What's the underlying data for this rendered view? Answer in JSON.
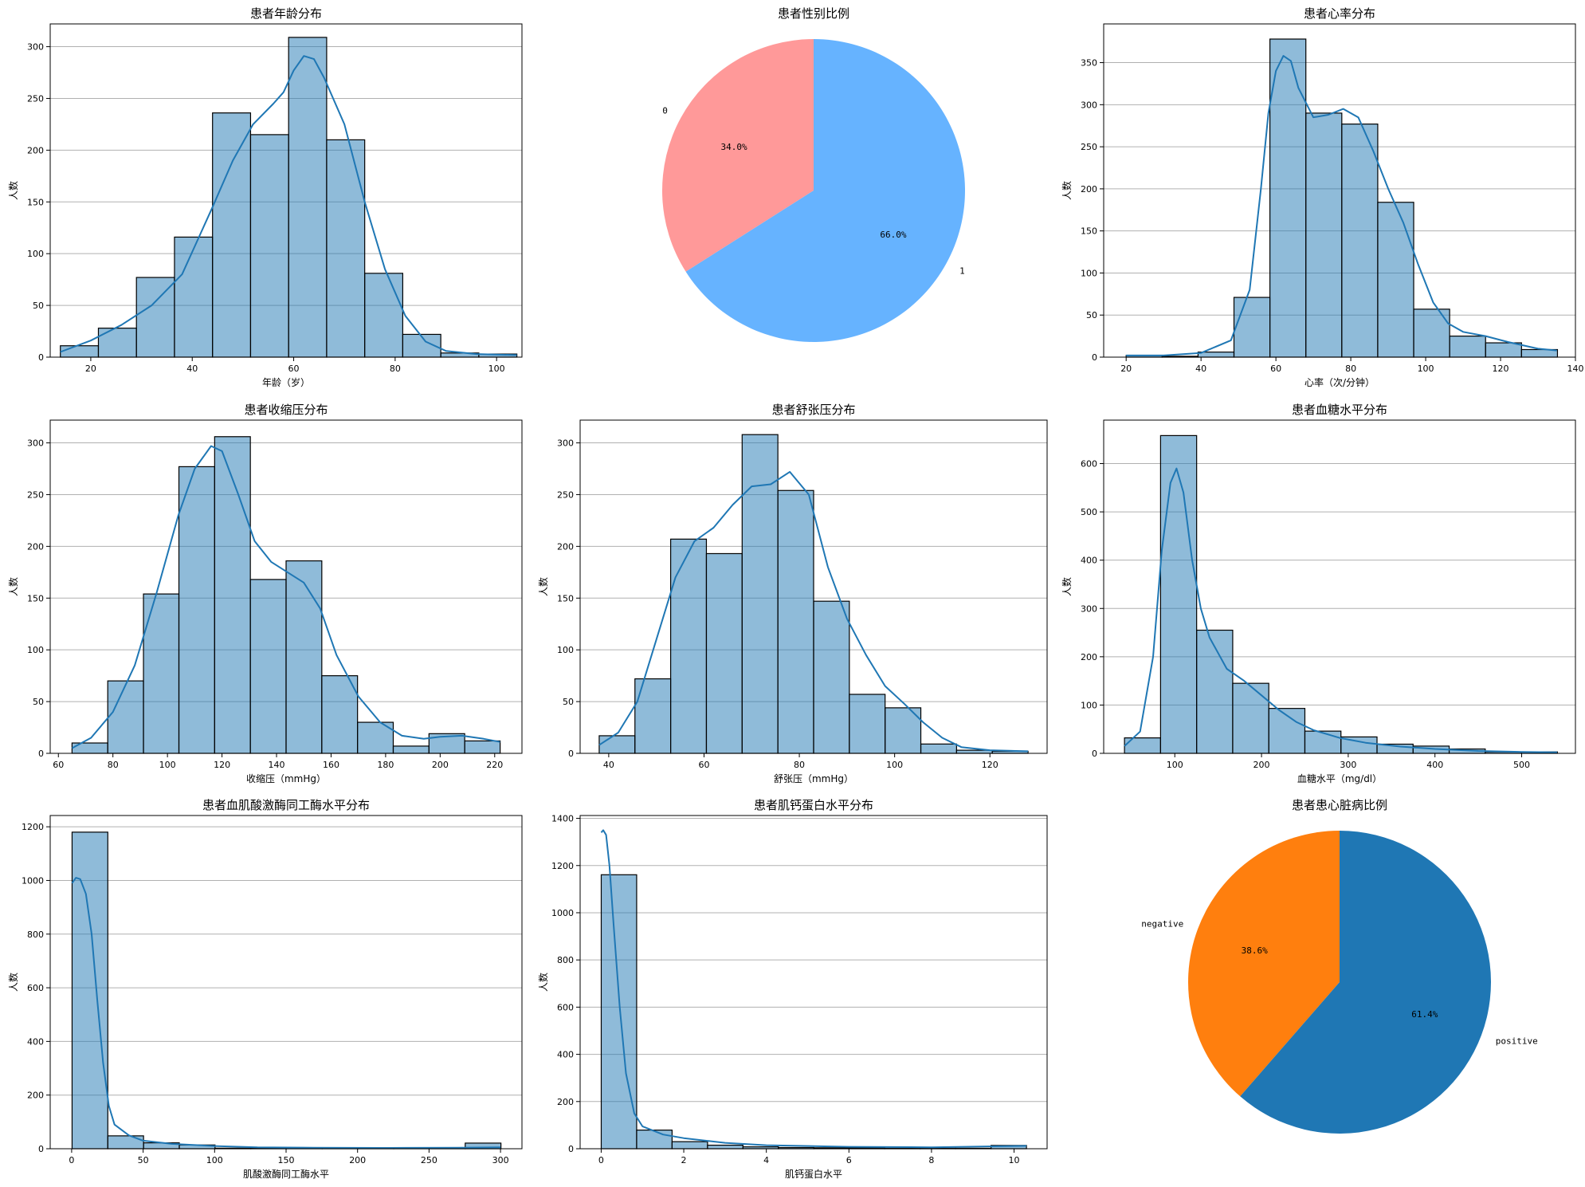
{
  "colors": {
    "hist_fill": "#1f77b4",
    "hist_fill_opacity": 0.5,
    "kde": "#1f77b4",
    "grid": "#b0b0b0",
    "edge": "#000000"
  },
  "chart_data": [
    {
      "type": "histogram",
      "title": "患者年龄分布",
      "xlabel": "年龄（岁）",
      "ylabel": "人数",
      "xlim": [
        12,
        105
      ],
      "ylim": [
        0,
        322
      ],
      "xticks": [
        20,
        40,
        60,
        80,
        100
      ],
      "yticks": [
        0,
        50,
        100,
        150,
        200,
        250,
        300
      ],
      "bins": [
        14,
        21.5,
        29,
        36.5,
        44,
        51.5,
        59,
        66.5,
        74,
        81.5,
        89,
        96.5,
        104
      ],
      "values": [
        11,
        28,
        77,
        116,
        236,
        215,
        309,
        210,
        81,
        22,
        4,
        3
      ],
      "kde": [
        [
          14,
          5
        ],
        [
          20,
          16
        ],
        [
          26,
          31
        ],
        [
          32,
          50
        ],
        [
          38,
          80
        ],
        [
          44,
          145
        ],
        [
          48,
          190
        ],
        [
          52,
          225
        ],
        [
          56,
          245
        ],
        [
          58,
          256
        ],
        [
          60,
          277
        ],
        [
          62,
          291
        ],
        [
          64,
          288
        ],
        [
          66,
          270
        ],
        [
          70,
          225
        ],
        [
          74,
          150
        ],
        [
          78,
          85
        ],
        [
          82,
          40
        ],
        [
          86,
          15
        ],
        [
          90,
          6
        ],
        [
          96,
          3
        ],
        [
          104,
          2
        ]
      ]
    },
    {
      "type": "pie",
      "title": "患者性别比例",
      "labels": [
        "0",
        "1"
      ],
      "values": [
        34.0,
        66.0
      ],
      "pct_labels": [
        "34.0%",
        "66.0%"
      ],
      "colors": [
        "#ff9999",
        "#66b3ff"
      ]
    },
    {
      "type": "histogram",
      "title": "患者心率分布",
      "xlabel": "心率（次/分钟）",
      "ylabel": "人数",
      "xlim": [
        14,
        140
      ],
      "ylim": [
        0,
        396
      ],
      "xticks": [
        20,
        40,
        60,
        80,
        100,
        120,
        140
      ],
      "yticks": [
        0,
        50,
        100,
        150,
        200,
        250,
        300,
        350
      ],
      "bins": [
        20,
        29.6,
        39.2,
        48.8,
        58.4,
        68,
        77.6,
        87.2,
        96.8,
        106.4,
        116,
        125.6,
        135.2
      ],
      "values": [
        2,
        1,
        6,
        71,
        378,
        290,
        277,
        184,
        57,
        25,
        17,
        9
      ],
      "kde": [
        [
          20,
          2
        ],
        [
          30,
          2
        ],
        [
          40,
          5
        ],
        [
          48,
          20
        ],
        [
          53,
          80
        ],
        [
          56,
          200
        ],
        [
          58,
          290
        ],
        [
          60,
          340
        ],
        [
          62,
          358
        ],
        [
          64,
          352
        ],
        [
          66,
          320
        ],
        [
          70,
          285
        ],
        [
          74,
          288
        ],
        [
          78,
          295
        ],
        [
          82,
          285
        ],
        [
          86,
          245
        ],
        [
          90,
          200
        ],
        [
          94,
          160
        ],
        [
          98,
          110
        ],
        [
          102,
          65
        ],
        [
          106,
          40
        ],
        [
          110,
          30
        ],
        [
          116,
          25
        ],
        [
          122,
          18
        ],
        [
          130,
          10
        ],
        [
          135,
          8
        ]
      ]
    },
    {
      "type": "histogram",
      "title": "患者收缩压分布",
      "xlabel": "收缩压（mmHg）",
      "ylabel": "人数",
      "xlim": [
        57,
        230
      ],
      "ylim": [
        0,
        322
      ],
      "xticks": [
        60,
        80,
        100,
        120,
        140,
        160,
        180,
        200,
        220
      ],
      "yticks": [
        0,
        50,
        100,
        150,
        200,
        250,
        300
      ],
      "bins": [
        65,
        78.1,
        91.2,
        104.2,
        117.3,
        130.4,
        143.5,
        156.6,
        169.7,
        182.8,
        195.9,
        209,
        222
      ],
      "values": [
        10,
        70,
        154,
        277,
        306,
        168,
        186,
        75,
        30,
        7,
        19,
        12
      ],
      "kde": [
        [
          65,
          5
        ],
        [
          72,
          15
        ],
        [
          80,
          40
        ],
        [
          88,
          85
        ],
        [
          96,
          155
        ],
        [
          104,
          230
        ],
        [
          110,
          275
        ],
        [
          116,
          297
        ],
        [
          120,
          292
        ],
        [
          126,
          250
        ],
        [
          132,
          205
        ],
        [
          138,
          185
        ],
        [
          144,
          175
        ],
        [
          150,
          165
        ],
        [
          156,
          140
        ],
        [
          162,
          95
        ],
        [
          170,
          55
        ],
        [
          178,
          30
        ],
        [
          186,
          17
        ],
        [
          194,
          14
        ],
        [
          200,
          16
        ],
        [
          208,
          17
        ],
        [
          216,
          14
        ],
        [
          222,
          11
        ]
      ]
    },
    {
      "type": "histogram",
      "title": "患者舒张压分布",
      "xlabel": "舒张压（mmHg）",
      "ylabel": "人数",
      "xlim": [
        34,
        132
      ],
      "ylim": [
        0,
        322
      ],
      "xticks": [
        40,
        60,
        80,
        100,
        120
      ],
      "yticks": [
        0,
        50,
        100,
        150,
        200,
        250,
        300
      ],
      "bins": [
        38,
        45.5,
        53,
        60.5,
        68,
        75.5,
        83,
        90.5,
        98,
        105.5,
        113,
        120.5,
        128
      ],
      "values": [
        17,
        72,
        207,
        193,
        308,
        254,
        147,
        57,
        44,
        9,
        3,
        2
      ],
      "kde": [
        [
          38,
          8
        ],
        [
          42,
          20
        ],
        [
          46,
          50
        ],
        [
          50,
          110
        ],
        [
          54,
          170
        ],
        [
          58,
          205
        ],
        [
          62,
          218
        ],
        [
          66,
          240
        ],
        [
          70,
          258
        ],
        [
          74,
          260
        ],
        [
          78,
          272
        ],
        [
          82,
          250
        ],
        [
          86,
          180
        ],
        [
          90,
          130
        ],
        [
          94,
          95
        ],
        [
          98,
          65
        ],
        [
          102,
          48
        ],
        [
          106,
          30
        ],
        [
          110,
          15
        ],
        [
          114,
          6
        ],
        [
          120,
          3
        ],
        [
          128,
          2
        ]
      ]
    },
    {
      "type": "histogram",
      "title": "患者血糖水平分布",
      "xlabel": "血糖水平（mg/dl）",
      "ylabel": "人数",
      "xlim": [
        18,
        562
      ],
      "ylim": [
        0,
        690
      ],
      "xticks": [
        100,
        200,
        300,
        400,
        500
      ],
      "yticks": [
        0,
        100,
        200,
        300,
        400,
        500,
        600
      ],
      "bins": [
        42,
        83.6,
        125.2,
        166.8,
        208.4,
        250,
        291.6,
        333.2,
        374.8,
        416.4,
        458,
        499.6,
        541.2
      ],
      "values": [
        32,
        658,
        255,
        145,
        93,
        46,
        34,
        19,
        15,
        9,
        3,
        3
      ],
      "kde": [
        [
          42,
          15
        ],
        [
          60,
          45
        ],
        [
          75,
          200
        ],
        [
          85,
          420
        ],
        [
          95,
          560
        ],
        [
          102,
          590
        ],
        [
          110,
          540
        ],
        [
          120,
          400
        ],
        [
          130,
          300
        ],
        [
          140,
          240
        ],
        [
          160,
          175
        ],
        [
          180,
          150
        ],
        [
          200,
          120
        ],
        [
          220,
          90
        ],
        [
          240,
          65
        ],
        [
          260,
          48
        ],
        [
          290,
          32
        ],
        [
          320,
          22
        ],
        [
          360,
          14
        ],
        [
          400,
          9
        ],
        [
          450,
          5
        ],
        [
          500,
          3
        ],
        [
          541,
          2
        ]
      ]
    },
    {
      "type": "histogram",
      "title": "患者血肌酸激酶同工酶水平分布",
      "xlabel": "肌酸激酶同工酶水平",
      "ylabel": "人数",
      "xlim": [
        -15,
        315
      ],
      "ylim": [
        0,
        1242
      ],
      "xticks": [
        0,
        50,
        100,
        150,
        200,
        250,
        300
      ],
      "yticks": [
        0,
        200,
        400,
        600,
        800,
        1000,
        1200
      ],
      "bins": [
        0.3,
        25.3,
        50.3,
        75.3,
        100.3,
        125.3,
        150.3,
        175.3,
        200.3,
        225.3,
        250.3,
        275.3,
        300.3
      ],
      "values": [
        1180,
        48,
        22,
        14,
        2,
        2,
        2,
        2,
        1,
        1,
        1,
        21
      ],
      "kde": [
        [
          0.3,
          990
        ],
        [
          3,
          1010
        ],
        [
          6,
          1005
        ],
        [
          10,
          950
        ],
        [
          14,
          800
        ],
        [
          18,
          550
        ],
        [
          22,
          320
        ],
        [
          26,
          160
        ],
        [
          30,
          90
        ],
        [
          40,
          50
        ],
        [
          50,
          30
        ],
        [
          70,
          18
        ],
        [
          100,
          10
        ],
        [
          130,
          5
        ],
        [
          170,
          4
        ],
        [
          220,
          3
        ],
        [
          270,
          4
        ],
        [
          300,
          5
        ]
      ]
    },
    {
      "type": "histogram",
      "title": "患者肌钙蛋白水平分布",
      "xlabel": "肌钙蛋白水平",
      "ylabel": "人数",
      "xlim": [
        -0.51,
        10.8
      ],
      "ylim": [
        0,
        1412
      ],
      "xticks": [
        0,
        2,
        4,
        6,
        8,
        10
      ],
      "yticks": [
        0,
        200,
        400,
        600,
        800,
        1000,
        1200,
        1400
      ],
      "bins": [
        0.001,
        0.859,
        1.717,
        2.576,
        3.434,
        4.292,
        5.15,
        6.009,
        6.867,
        7.725,
        8.583,
        9.442,
        10.3
      ],
      "values": [
        1161,
        79,
        30,
        15,
        8,
        5,
        4,
        3,
        2,
        2,
        2,
        14
      ],
      "kde": [
        [
          0.001,
          1340
        ],
        [
          0.05,
          1350
        ],
        [
          0.12,
          1330
        ],
        [
          0.2,
          1200
        ],
        [
          0.3,
          950
        ],
        [
          0.45,
          600
        ],
        [
          0.6,
          320
        ],
        [
          0.8,
          150
        ],
        [
          1.0,
          95
        ],
        [
          1.5,
          60
        ],
        [
          2.0,
          45
        ],
        [
          3.0,
          25
        ],
        [
          4.0,
          15
        ],
        [
          6.0,
          8
        ],
        [
          8.0,
          6
        ],
        [
          9.5,
          10
        ],
        [
          10.3,
          12
        ]
      ]
    },
    {
      "type": "pie",
      "title": "患者患心脏病比例",
      "labels": [
        "negative",
        "positive"
      ],
      "values": [
        38.6,
        61.4
      ],
      "pct_labels": [
        "38.6%",
        "61.4%"
      ],
      "colors": [
        "#ff7f0e",
        "#1f77b4"
      ]
    }
  ]
}
